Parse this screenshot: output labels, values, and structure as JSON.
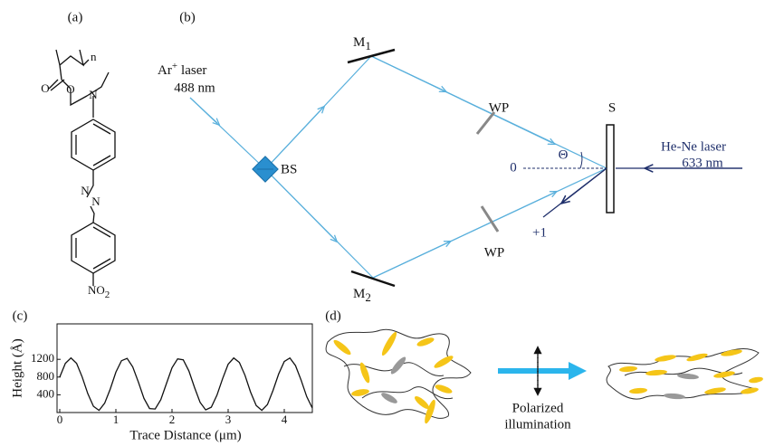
{
  "panel_labels": [
    "(a)",
    "(b)",
    "(c)",
    "(d)"
  ],
  "molecule": {
    "atoms": [
      "n",
      "O",
      "O",
      "N",
      "N",
      "N",
      "NO",
      "2"
    ]
  },
  "setup": {
    "ar_laser": {
      "name": "Ar",
      "charge": "+",
      "word": "laser",
      "wavelength": "488 nm"
    },
    "beam_splitter": "BS",
    "mirrors": [
      {
        "letter": "M",
        "index": "1"
      },
      {
        "letter": "M",
        "index": "2"
      }
    ],
    "waveplates": [
      "WP",
      "WP"
    ],
    "sample": "S",
    "angle": "Θ",
    "orders": [
      "0",
      "+1"
    ],
    "hene_laser": {
      "name": "He-Ne laser",
      "wavelength": "633 nm"
    }
  },
  "chart_data": {
    "type": "line",
    "x_label": "Trace Distance (μm)",
    "y_label": "Height (Å)",
    "x": [
      0,
      0.1,
      0.2,
      0.3,
      0.4,
      0.5,
      0.6,
      0.7,
      0.8,
      0.9,
      1.0,
      1.1,
      1.2,
      1.3,
      1.4,
      1.5,
      1.6,
      1.7,
      1.8,
      1.9,
      2.0,
      2.1,
      2.2,
      2.3,
      2.4,
      2.5,
      2.6,
      2.7,
      2.8,
      2.9,
      3.0,
      3.1,
      3.2,
      3.3,
      3.4,
      3.5,
      3.6,
      3.7,
      3.8,
      3.9,
      4.0,
      4.1,
      4.2,
      4.3,
      4.4,
      4.5
    ],
    "values": [
      800,
      1110,
      1230,
      1110,
      800,
      425,
      140,
      50,
      210,
      530,
      910,
      1170,
      1220,
      1030,
      690,
      320,
      90,
      80,
      290,
      650,
      1010,
      1210,
      1190,
      940,
      570,
      230,
      60,
      120,
      390,
      760,
      1090,
      1230,
      1130,
      840,
      460,
      160,
      50,
      180,
      500,
      870,
      1150,
      1230,
      1060,
      730,
      360,
      100
    ],
    "color": "#111111",
    "xlim": [
      0,
      4.5
    ],
    "ylim": [
      0,
      2000
    ],
    "xticks": [
      0,
      1,
      2,
      3,
      4
    ],
    "yticks": [
      400,
      800,
      1200
    ]
  },
  "illumination": [
    "Polarized",
    "illumination"
  ]
}
